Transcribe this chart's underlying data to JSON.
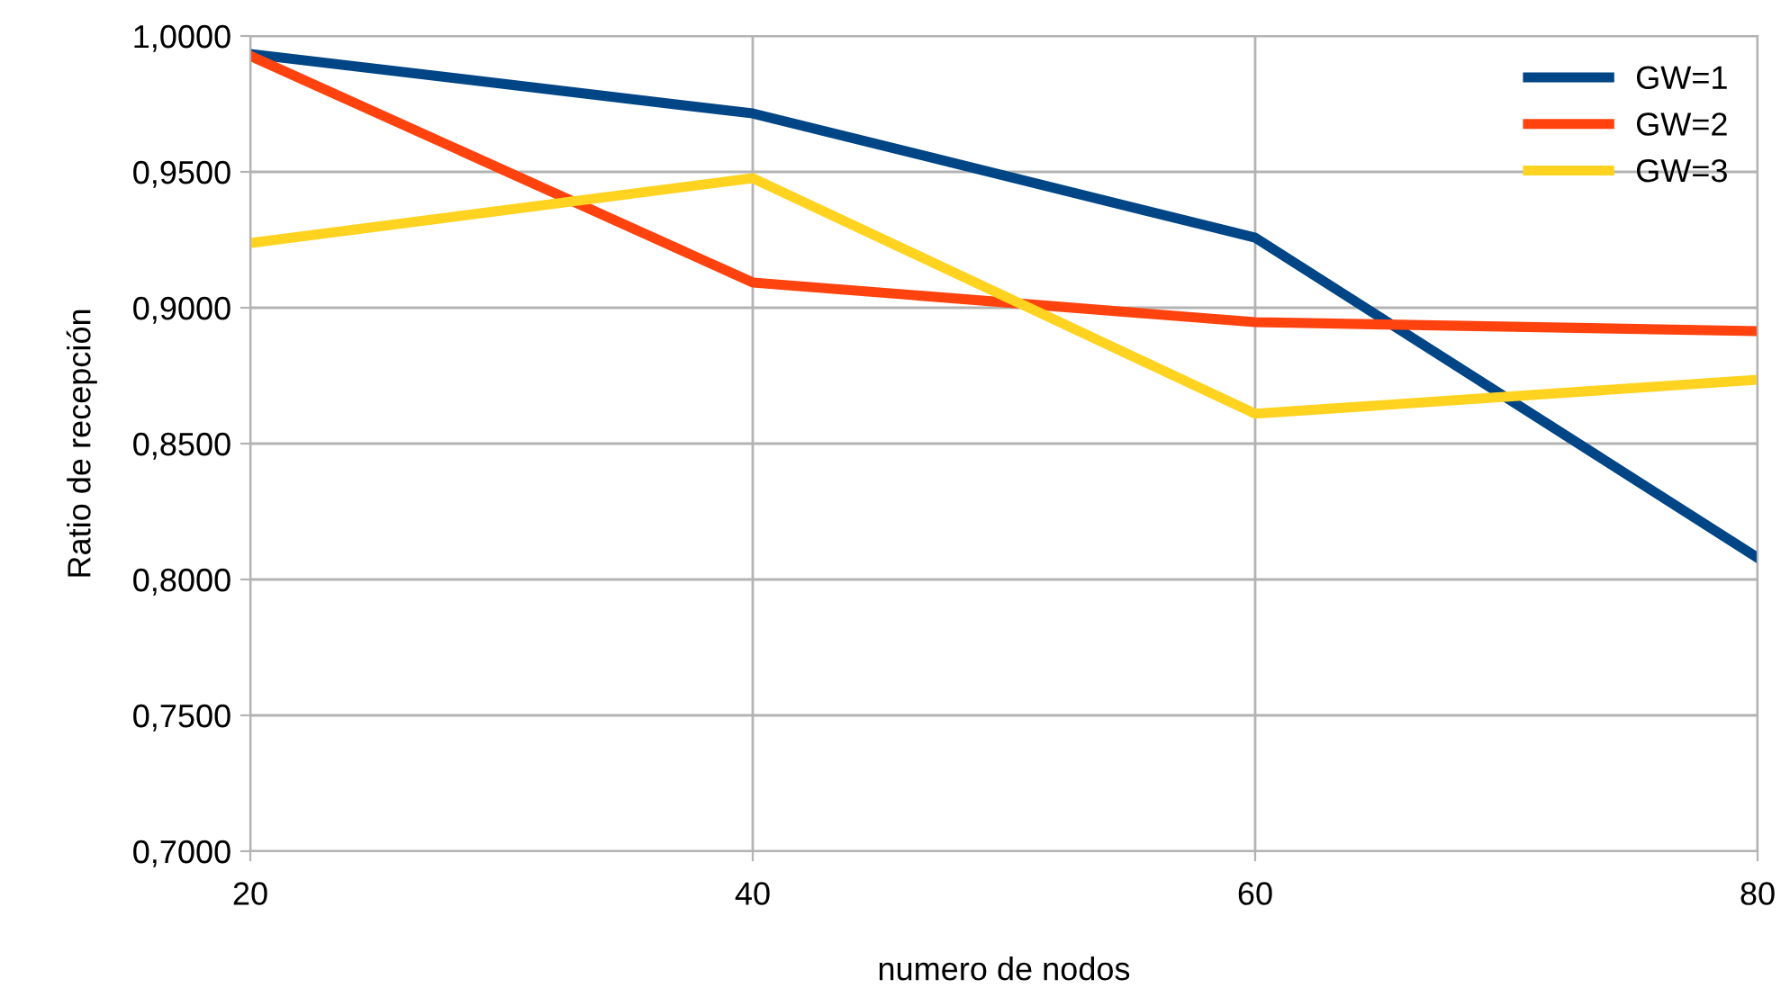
{
  "chart_data": {
    "type": "line",
    "xlabel": "numero de nodos",
    "ylabel": "Ratio de recepción",
    "x": [
      20,
      40,
      60,
      80
    ],
    "series": [
      {
        "name": "GW=1",
        "color": "#004586",
        "values": [
          0.9934,
          0.9715,
          0.9258,
          0.808
        ]
      },
      {
        "name": "GW=2",
        "color": "#ff420e",
        "values": [
          0.9927,
          0.9093,
          0.8947,
          0.8914
        ]
      },
      {
        "name": "GW=3",
        "color": "#ffd320",
        "values": [
          0.9238,
          0.9477,
          0.861,
          0.8735
        ]
      }
    ],
    "xlim": [
      20,
      80
    ],
    "xticks": [
      20,
      40,
      60,
      80
    ],
    "ylim": [
      0.7,
      1.0
    ],
    "yticks": [
      {
        "value": 0.7,
        "label": "0,7000"
      },
      {
        "value": 0.75,
        "label": "0,7500"
      },
      {
        "value": 0.8,
        "label": "0,8000"
      },
      {
        "value": 0.85,
        "label": "0,8500"
      },
      {
        "value": 0.9,
        "label": "0,9000"
      },
      {
        "value": 0.95,
        "label": "0,9500"
      },
      {
        "value": 1.0,
        "label": "1,0000"
      }
    ],
    "grid": true,
    "legend": "top right",
    "marker": "none",
    "line_style": "solid"
  }
}
